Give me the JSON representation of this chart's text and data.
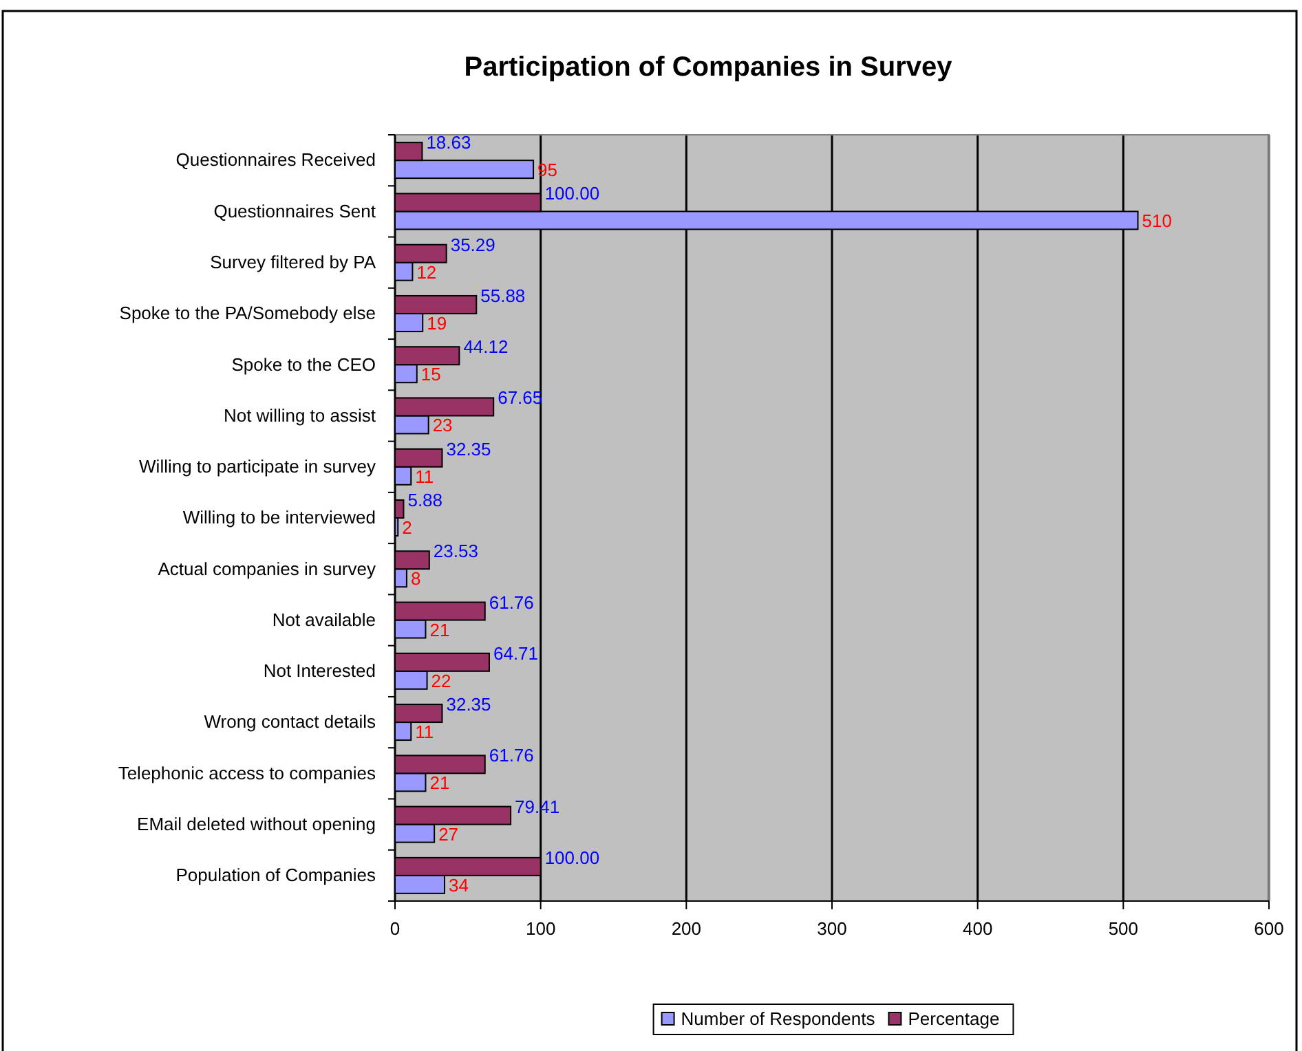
{
  "chart_data": {
    "type": "bar",
    "orientation": "horizontal",
    "title": "Participation of Companies in Survey",
    "categories": [
      "Questionnaires Received",
      "Questionnaires Sent",
      "Survey filtered by PA",
      "Spoke to the PA/Somebody else",
      "Spoke to the CEO",
      "Not willing to assist",
      "Willing to participate in survey",
      "Willing to be interviewed",
      "Actual companies in survey",
      "Not available",
      "Not Interested",
      "Wrong contact details",
      "Telephonic access to companies",
      "EMail deleted without opening",
      "Population of Companies"
    ],
    "series": [
      {
        "name": "Number of Respondents",
        "color": "#9999ff",
        "values": [
          95,
          510,
          12,
          19,
          15,
          23,
          11,
          2,
          8,
          21,
          22,
          11,
          21,
          27,
          34
        ],
        "value_labels": [
          "95",
          "510",
          "12",
          "19",
          "15",
          "23",
          "11",
          "2",
          "8",
          "21",
          "22",
          "11",
          "21",
          "27",
          "34"
        ]
      },
      {
        "name": "Percentage",
        "color": "#993366",
        "values": [
          18.63,
          100,
          35.29,
          55.88,
          44.12,
          67.65,
          32.35,
          5.88,
          23.53,
          61.76,
          64.71,
          32.35,
          61.76,
          79.41,
          100
        ],
        "value_labels": [
          "18.63",
          "100.00",
          "35.29",
          "55.88",
          "44.12",
          "67.65",
          "32.35",
          "5.88",
          "23.53",
          "61.76",
          "64.71",
          "32.35",
          "61.76",
          "79.41",
          "100.00"
        ]
      }
    ],
    "xlim": [
      0,
      600
    ],
    "xticks": [
      0,
      100,
      200,
      300,
      400,
      500,
      600
    ],
    "grid": "x",
    "legend": "bottom"
  }
}
